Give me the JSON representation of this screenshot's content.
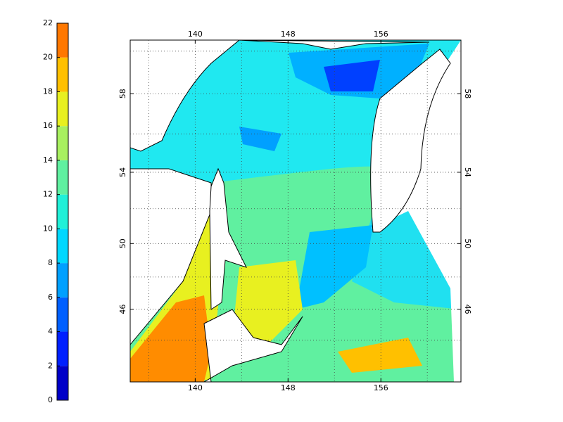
{
  "chart_data": {
    "type": "map",
    "projection": "mercator",
    "xlim": [
      134.4,
      162.9
    ],
    "ylim": [
      41.2,
      60.5
    ],
    "xticks": [
      140,
      148,
      156
    ],
    "yticks": [
      46,
      50,
      54,
      58
    ],
    "xgrid": [
      136,
      140,
      144,
      148,
      152,
      156,
      160
    ],
    "ygrid": [
      44,
      46,
      48,
      50,
      52,
      54,
      56,
      58,
      60
    ],
    "colorbar": {
      "lim": [
        0,
        22
      ],
      "ticks": [
        0,
        2,
        4,
        6,
        8,
        10,
        12,
        14,
        16,
        18,
        20,
        22
      ],
      "colors": [
        "#0000c8",
        "#0020ff",
        "#0060ff",
        "#00a0ff",
        "#00d8ff",
        "#20f0d8",
        "#60f0a0",
        "#a8f060",
        "#e8f020",
        "#ffc000",
        "#ff7800",
        "#ff2000"
      ]
    }
  }
}
